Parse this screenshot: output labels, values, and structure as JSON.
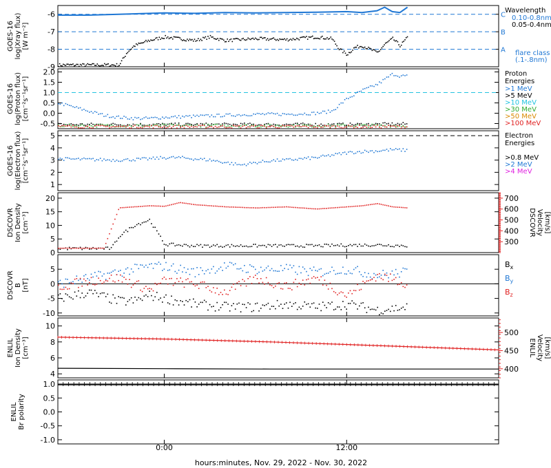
{
  "x_axis": {
    "label": "hours:minutes, Nov. 29, 2022 - Nov. 30, 2022",
    "ticks": [
      {
        "hour": 0,
        "label": "0:00"
      },
      {
        "hour": 12,
        "label": "12:00"
      }
    ],
    "range_hours": [
      -7,
      22
    ],
    "data_end_hour": 16
  },
  "colors": {
    "black": "#000000",
    "blue": "#1f77d4",
    "cyan": "#22c3e0",
    "green": "#2eaa2e",
    "orange": "#d98a00",
    "red": "#e02020",
    "magenta": "#e020e0"
  },
  "chart_data": [
    {
      "panel": "xray",
      "type": "line",
      "ylabel": [
        "GOES-16",
        "log(Xray flux)",
        "[W m⁻²]"
      ],
      "ylim": [
        -9,
        -5.5
      ],
      "yticks": [
        -9,
        -8,
        -7,
        -6
      ],
      "ref_lines": [
        {
          "y": -6,
          "color": "blue",
          "dashed": true
        },
        {
          "y": -7,
          "color": "blue",
          "dashed": true
        },
        {
          "y": -8,
          "color": "blue",
          "dashed": true
        }
      ],
      "class_letters": [
        {
          "y": -6,
          "label": "C"
        },
        {
          "y": -7,
          "label": "B"
        },
        {
          "y": -8,
          "label": "A"
        }
      ],
      "legend": {
        "title": "Wavelength",
        "items": [
          {
            "label": "0.10-0.8nm",
            "color": "blue"
          },
          {
            "label": "0.05-0.4nm",
            "color": "black"
          }
        ],
        "note": [
          "flare class",
          "(.1-.8nm)"
        ]
      },
      "series": [
        {
          "label": "0.10-0.8nm",
          "color": "blue",
          "style": "line",
          "x": [
            -7,
            -5,
            -3,
            0,
            2,
            4,
            6,
            8,
            10,
            12,
            13,
            14,
            14.5,
            15,
            15.5,
            16
          ],
          "y": [
            -6.05,
            -6.05,
            -6.0,
            -5.92,
            -5.95,
            -5.9,
            -5.92,
            -5.9,
            -5.88,
            -5.85,
            -5.9,
            -5.8,
            -5.6,
            -5.85,
            -5.9,
            -5.6
          ]
        },
        {
          "label": "0.05-0.4nm",
          "color": "black",
          "style": "points",
          "x": [
            -7,
            -3,
            -2.7,
            -2.5,
            -2,
            -1,
            0,
            1,
            2,
            3,
            4,
            6,
            8,
            10,
            11,
            11.5,
            12,
            12.5,
            13,
            14,
            14.5,
            15,
            15.5,
            16
          ],
          "y": [
            -8.9,
            -8.9,
            -8.5,
            -8.2,
            -7.8,
            -7.5,
            -7.3,
            -7.4,
            -7.5,
            -7.3,
            -7.5,
            -7.4,
            -7.45,
            -7.3,
            -7.4,
            -8.0,
            -8.3,
            -7.9,
            -7.8,
            -8.2,
            -7.7,
            -7.4,
            -7.8,
            -7.3
          ]
        }
      ]
    },
    {
      "panel": "proton",
      "type": "scatter",
      "ylabel": [
        "GOES-16",
        "log(Proton flux)",
        "[cm⁻²s⁻¹sr⁻¹]"
      ],
      "ylim": [
        -0.75,
        2.15
      ],
      "yticks": [
        -0.5,
        0.0,
        0.5,
        1.0,
        1.5,
        2.0
      ],
      "ref_lines": [
        {
          "y": 1.0,
          "color": "cyan",
          "dashed": true
        }
      ],
      "legend": {
        "title": [
          "Proton",
          "Energies"
        ],
        "items": [
          {
            "label": ">1 MeV",
            "color": "blue"
          },
          {
            "label": ">5 MeV",
            "color": "black"
          },
          {
            "label": ">10 MeV",
            "color": "cyan"
          },
          {
            "label": ">30 MeV",
            "color": "green"
          },
          {
            "label": ">50 MeV",
            "color": "orange"
          },
          {
            "label": ">100 MeV",
            "color": "red"
          }
        ]
      },
      "series": [
        {
          "label": ">1 MeV",
          "color": "blue",
          "x": [
            -7,
            -6,
            -5,
            -4,
            -3,
            -2,
            -1,
            0,
            2,
            4,
            6,
            8,
            10,
            11,
            11.5,
            12,
            13,
            14,
            15,
            15.5,
            16
          ],
          "y": [
            0.5,
            0.3,
            0.1,
            -0.1,
            -0.2,
            -0.25,
            -0.25,
            -0.2,
            -0.15,
            -0.1,
            -0.05,
            -0.05,
            0.0,
            0.1,
            0.4,
            0.7,
            1.1,
            1.4,
            1.9,
            1.8,
            1.8
          ]
        },
        {
          "label": ">5 MeV",
          "color": "black",
          "x": [
            -7,
            0,
            4,
            8,
            12,
            16
          ],
          "y": [
            -0.55,
            -0.55,
            -0.55,
            -0.55,
            -0.55,
            -0.52
          ]
        },
        {
          "label": ">30 MeV",
          "color": "green",
          "x": [
            -7,
            0,
            4,
            8,
            12,
            16
          ],
          "y": [
            -0.6,
            -0.6,
            -0.6,
            -0.6,
            -0.6,
            -0.6
          ]
        },
        {
          "label": ">100 MeV",
          "color": "red",
          "x": [
            -7,
            0,
            4,
            8,
            12,
            16
          ],
          "y": [
            -0.65,
            -0.65,
            -0.65,
            -0.65,
            -0.65,
            -0.65
          ]
        }
      ]
    },
    {
      "panel": "electron",
      "type": "scatter",
      "ylabel": [
        "GOES-16",
        "log(Electron flux)",
        "[cm⁻²s⁻¹sr⁻¹]"
      ],
      "ylim": [
        0.5,
        5.4
      ],
      "yticks": [
        1,
        2,
        3,
        4,
        5
      ],
      "ref_lines": [
        {
          "y": 5.0,
          "color": "black",
          "dashed": true
        }
      ],
      "legend": {
        "title": [
          "Electron",
          "Energies"
        ],
        "items": [
          {
            "label": ">0.8 MeV",
            "color": "black"
          },
          {
            "label": ">2 MeV",
            "color": "blue"
          },
          {
            "label": ">4 MeV",
            "color": "magenta"
          }
        ]
      },
      "series": [
        {
          "label": ">2 MeV",
          "color": "blue",
          "x": [
            -7,
            -5,
            -3,
            -1,
            0,
            1,
            2,
            3,
            4,
            5,
            6,
            7,
            8,
            9,
            10,
            11,
            12,
            13,
            14,
            15,
            16
          ],
          "y": [
            3.1,
            3.05,
            3.0,
            3.1,
            3.2,
            3.2,
            3.1,
            3.0,
            2.8,
            2.6,
            2.8,
            2.95,
            3.0,
            3.1,
            3.2,
            3.4,
            3.6,
            3.7,
            3.75,
            3.85,
            3.8
          ]
        }
      ]
    },
    {
      "panel": "dscovr_plasma",
      "type": "scatter",
      "ylabel": [
        "DSCOVR",
        "Ion Density",
        "[cm⁻³]"
      ],
      "ylabel_right": [
        "DSCOVR",
        "Velocity",
        "[km/s]"
      ],
      "ylim": [
        0,
        22
      ],
      "yticks": [
        0,
        5,
        10,
        15,
        20
      ],
      "ylim_right": [
        200,
        750
      ],
      "yticks_right": [
        300,
        400,
        500,
        600,
        700
      ],
      "series": [
        {
          "label": "Ion Density",
          "color": "black",
          "axis": "left",
          "x": [
            -7,
            -5.5,
            -4.5,
            -3.5,
            -3,
            -2,
            -1,
            0,
            2,
            4,
            6,
            8,
            10,
            12,
            14,
            16
          ],
          "y": [
            1.5,
            1.5,
            1.5,
            1.5,
            6,
            10,
            12,
            3,
            2.5,
            2.5,
            2.5,
            2.5,
            2.5,
            2.7,
            2.8,
            2.5
          ]
        },
        {
          "label": "Velocity",
          "color": "red",
          "axis": "right",
          "x": [
            -7,
            -5.5,
            -4,
            -3,
            -2,
            -1,
            0,
            1,
            2,
            4,
            6,
            8,
            10,
            12,
            13,
            14,
            15,
            16
          ],
          "y": [
            240,
            240,
            240,
            610,
            620,
            630,
            625,
            660,
            640,
            620,
            610,
            620,
            600,
            620,
            630,
            650,
            620,
            610
          ]
        }
      ]
    },
    {
      "panel": "dscovr_b",
      "type": "scatter",
      "ylabel": [
        "DSCOVR",
        "B",
        "[nT]"
      ],
      "ylim": [
        -11,
        10
      ],
      "yticks": [
        -10,
        -5,
        0,
        5
      ],
      "zero_line": true,
      "legend": {
        "items": [
          {
            "label": "Bx",
            "color": "black"
          },
          {
            "label": "By",
            "color": "blue"
          },
          {
            "label": "Bz",
            "color": "red"
          }
        ]
      },
      "series": [
        {
          "label": "Bx",
          "color": "black",
          "x": [
            -7,
            -5,
            -3,
            -2,
            -1,
            0,
            2,
            4,
            6,
            8,
            10,
            12,
            14,
            16
          ],
          "y": [
            -5,
            -3,
            -6,
            -6,
            -4,
            -5,
            -7,
            -8,
            -8,
            -7,
            -8,
            -7,
            -9,
            -8
          ]
        },
        {
          "label": "By",
          "color": "blue",
          "x": [
            -7,
            -5,
            -3,
            -2,
            -1,
            0,
            2,
            4,
            6,
            8,
            10,
            12,
            14,
            16
          ],
          "y": [
            0,
            2,
            4,
            5,
            6,
            6,
            4,
            6,
            5,
            5,
            4,
            5,
            3,
            4
          ]
        },
        {
          "label": "Bz",
          "color": "red",
          "x": [
            -7,
            -5,
            -3,
            -2,
            -1,
            0,
            2,
            4,
            6,
            8,
            10,
            12,
            14,
            16
          ],
          "y": [
            -1,
            1,
            2,
            0,
            -2,
            1,
            0,
            -3,
            2,
            -1,
            2,
            -4,
            3,
            0
          ]
        }
      ]
    },
    {
      "panel": "enlil_plasma",
      "type": "line",
      "ylabel": [
        "ENLIL",
        "Ion Density",
        "[cm⁻³]"
      ],
      "ylabel_right": [
        "ENLIL",
        "Velocity",
        "[km/s]"
      ],
      "ylim": [
        3.5,
        11
      ],
      "yticks": [
        4,
        6,
        8,
        10
      ],
      "ylim_right": [
        375,
        540
      ],
      "yticks_right": [
        400,
        450,
        500
      ],
      "series": [
        {
          "label": "Ion Density",
          "color": "black",
          "axis": "left",
          "x": [
            -7,
            0,
            7,
            14,
            22
          ],
          "y": [
            4.7,
            4.65,
            4.6,
            4.6,
            4.6
          ]
        },
        {
          "label": "Velocity",
          "color": "red",
          "axis": "right",
          "x": [
            -7,
            0,
            7,
            14,
            22
          ],
          "y": [
            487,
            482,
            474,
            464,
            452
          ]
        }
      ]
    },
    {
      "panel": "enlil_polarity",
      "type": "line",
      "ylabel": [
        "ENLIL",
        "Br polarity"
      ],
      "ylim": [
        -1.15,
        1.15
      ],
      "yticks": [
        -1.0,
        -0.5,
        0.0,
        0.5,
        1.0
      ],
      "series": [
        {
          "label": "Br polarity",
          "color": "black",
          "x": [
            -7,
            22
          ],
          "y": [
            1.0,
            1.0
          ]
        }
      ]
    }
  ]
}
